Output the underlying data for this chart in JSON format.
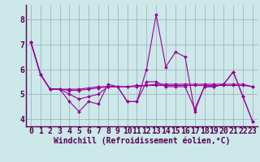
{
  "xlabel": "Windchill (Refroidissement éolien,°C)",
  "background_color": "#cce8e8",
  "line_color": "#990099",
  "grid_color": "#99aabb",
  "axis_color": "#550055",
  "xlim": [
    -0.5,
    23.5
  ],
  "ylim": [
    3.7,
    8.6
  ],
  "yticks": [
    4,
    5,
    6,
    7,
    8
  ],
  "xticks": [
    0,
    1,
    2,
    3,
    4,
    5,
    6,
    7,
    8,
    9,
    10,
    11,
    12,
    13,
    14,
    15,
    16,
    17,
    18,
    19,
    20,
    21,
    22,
    23
  ],
  "lines": [
    [
      7.1,
      5.8,
      5.2,
      5.2,
      4.7,
      4.3,
      4.7,
      4.6,
      5.4,
      5.3,
      4.7,
      4.7,
      6.0,
      8.2,
      6.1,
      6.7,
      6.5,
      4.3,
      5.3,
      5.3,
      5.4,
      5.9,
      4.9,
      3.9
    ],
    [
      7.1,
      5.8,
      5.2,
      5.2,
      5.2,
      5.2,
      5.25,
      5.3,
      5.3,
      5.3,
      5.3,
      5.35,
      5.35,
      5.35,
      5.35,
      5.35,
      5.35,
      5.35,
      5.35,
      5.35,
      5.35,
      5.35,
      5.35,
      5.3
    ],
    [
      7.1,
      5.8,
      5.2,
      5.2,
      5.15,
      5.15,
      5.2,
      5.25,
      5.3,
      5.3,
      5.3,
      5.3,
      5.35,
      5.4,
      5.4,
      5.4,
      5.4,
      5.4,
      5.4,
      5.4,
      5.4,
      5.4,
      5.4,
      5.3
    ],
    [
      7.1,
      5.8,
      5.2,
      5.2,
      5.0,
      4.8,
      4.9,
      5.0,
      5.3,
      5.3,
      4.7,
      4.7,
      5.5,
      5.5,
      5.3,
      5.3,
      5.3,
      4.4,
      5.3,
      5.3,
      5.4,
      5.9,
      4.9,
      3.9
    ]
  ],
  "tick_fontsize": 7,
  "xlabel_fontsize": 7
}
